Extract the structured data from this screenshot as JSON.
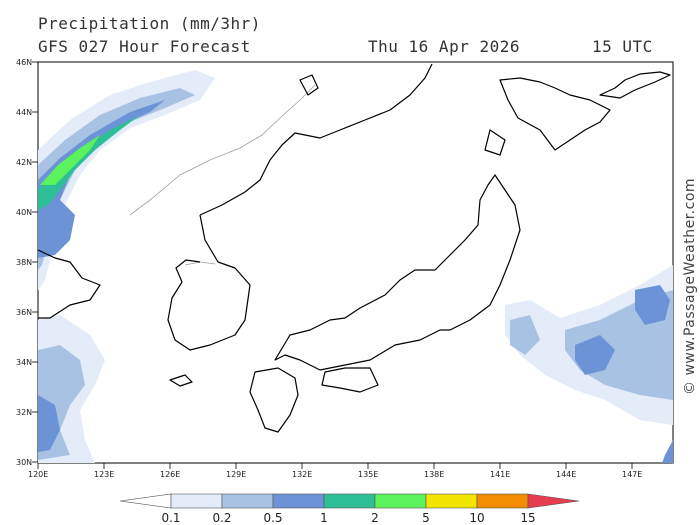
{
  "header": {
    "title": "Precipitation (mm/3hr)",
    "model": "GFS 027 Hour Forecast",
    "date": "Thu 16 Apr 2026",
    "time": "15 UTC"
  },
  "map": {
    "lat_labels": [
      "46N",
      "44N",
      "42N",
      "40N",
      "38N",
      "36N",
      "34N",
      "32N",
      "30N"
    ],
    "lon_labels": [
      "120E",
      "123E",
      "126E",
      "129E",
      "132E",
      "135E",
      "138E",
      "141E",
      "144E",
      "147E"
    ],
    "colors": {
      "land_border": "#000000",
      "country_border": "#a0a0a0",
      "grid": "#000000"
    }
  },
  "legend": {
    "labels": [
      "0.1",
      "0.2",
      "0.5",
      "1",
      "2",
      "5",
      "10",
      "15"
    ],
    "colors": [
      "#ffffff",
      "#e3ecf8",
      "#a8c2e4",
      "#6b93d6",
      "#2ebf96",
      "#5cf25c",
      "#f2e600",
      "#f28c00",
      "#e63c50"
    ]
  },
  "credit": "© www.PassageWeather.com"
}
